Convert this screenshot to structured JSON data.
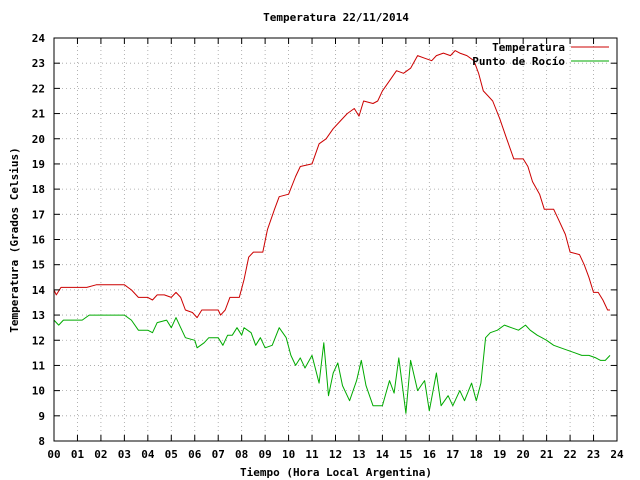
{
  "chart_data": {
    "type": "line",
    "title": "Temperatura 22/11/2014",
    "xlabel": "Tiempo (Hora Local Argentina)",
    "ylabel": "Temperatura (Grados Celsius)",
    "xlim": [
      0,
      24
    ],
    "ylim": [
      8,
      24
    ],
    "x_ticks": [
      "00",
      "01",
      "02",
      "03",
      "04",
      "05",
      "06",
      "07",
      "08",
      "09",
      "10",
      "11",
      "12",
      "13",
      "14",
      "15",
      "16",
      "17",
      "18",
      "19",
      "20",
      "21",
      "22",
      "23",
      "24"
    ],
    "y_ticks": [
      "8",
      "9",
      "10",
      "11",
      "12",
      "13",
      "14",
      "15",
      "16",
      "17",
      "18",
      "19",
      "20",
      "21",
      "22",
      "23",
      "24"
    ],
    "grid": true,
    "legend": "top-right",
    "series": [
      {
        "name": "Temperatura",
        "color": "#cc0000",
        "points": [
          [
            0.0,
            14.0
          ],
          [
            0.1,
            13.8
          ],
          [
            0.3,
            14.1
          ],
          [
            0.6,
            14.1
          ],
          [
            1.0,
            14.1
          ],
          [
            1.4,
            14.1
          ],
          [
            1.8,
            14.2
          ],
          [
            2.2,
            14.2
          ],
          [
            2.6,
            14.2
          ],
          [
            3.0,
            14.2
          ],
          [
            3.3,
            14.0
          ],
          [
            3.6,
            13.7
          ],
          [
            4.0,
            13.7
          ],
          [
            4.2,
            13.6
          ],
          [
            4.4,
            13.8
          ],
          [
            4.7,
            13.8
          ],
          [
            5.0,
            13.7
          ],
          [
            5.2,
            13.9
          ],
          [
            5.4,
            13.7
          ],
          [
            5.6,
            13.2
          ],
          [
            5.9,
            13.1
          ],
          [
            6.1,
            12.9
          ],
          [
            6.3,
            13.2
          ],
          [
            6.6,
            13.2
          ],
          [
            7.0,
            13.2
          ],
          [
            7.1,
            13.0
          ],
          [
            7.3,
            13.2
          ],
          [
            7.5,
            13.7
          ],
          [
            7.9,
            13.7
          ],
          [
            8.1,
            14.4
          ],
          [
            8.3,
            15.3
          ],
          [
            8.5,
            15.5
          ],
          [
            8.9,
            15.5
          ],
          [
            9.1,
            16.4
          ],
          [
            9.4,
            17.2
          ],
          [
            9.6,
            17.7
          ],
          [
            10.0,
            17.8
          ],
          [
            10.3,
            18.5
          ],
          [
            10.5,
            18.9
          ],
          [
            11.0,
            19.0
          ],
          [
            11.3,
            19.8
          ],
          [
            11.6,
            20.0
          ],
          [
            11.9,
            20.4
          ],
          [
            12.2,
            20.7
          ],
          [
            12.5,
            21.0
          ],
          [
            12.8,
            21.2
          ],
          [
            13.0,
            20.9
          ],
          [
            13.2,
            21.5
          ],
          [
            13.6,
            21.4
          ],
          [
            13.8,
            21.5
          ],
          [
            14.0,
            21.9
          ],
          [
            14.3,
            22.3
          ],
          [
            14.6,
            22.7
          ],
          [
            14.9,
            22.6
          ],
          [
            15.2,
            22.8
          ],
          [
            15.5,
            23.3
          ],
          [
            15.8,
            23.2
          ],
          [
            16.1,
            23.1
          ],
          [
            16.3,
            23.3
          ],
          [
            16.6,
            23.4
          ],
          [
            16.9,
            23.3
          ],
          [
            17.1,
            23.5
          ],
          [
            17.3,
            23.4
          ],
          [
            17.6,
            23.3
          ],
          [
            17.9,
            23.1
          ],
          [
            18.1,
            22.6
          ],
          [
            18.3,
            21.9
          ],
          [
            18.5,
            21.7
          ],
          [
            18.7,
            21.5
          ],
          [
            19.0,
            20.8
          ],
          [
            19.3,
            20.0
          ],
          [
            19.6,
            19.2
          ],
          [
            20.0,
            19.2
          ],
          [
            20.2,
            18.9
          ],
          [
            20.4,
            18.3
          ],
          [
            20.7,
            17.8
          ],
          [
            20.9,
            17.2
          ],
          [
            21.3,
            17.2
          ],
          [
            21.5,
            16.8
          ],
          [
            21.8,
            16.2
          ],
          [
            22.0,
            15.5
          ],
          [
            22.4,
            15.4
          ],
          [
            22.6,
            15.0
          ],
          [
            22.8,
            14.5
          ],
          [
            23.0,
            13.9
          ],
          [
            23.2,
            13.9
          ],
          [
            23.4,
            13.6
          ],
          [
            23.6,
            13.2
          ],
          [
            23.7,
            13.2
          ]
        ]
      },
      {
        "name": "Punto de Rocío",
        "color": "#00aa00",
        "points": [
          [
            0.0,
            12.8
          ],
          [
            0.2,
            12.6
          ],
          [
            0.4,
            12.8
          ],
          [
            0.8,
            12.8
          ],
          [
            1.2,
            12.8
          ],
          [
            1.5,
            13.0
          ],
          [
            2.0,
            13.0
          ],
          [
            2.5,
            13.0
          ],
          [
            3.0,
            13.0
          ],
          [
            3.3,
            12.8
          ],
          [
            3.6,
            12.4
          ],
          [
            4.0,
            12.4
          ],
          [
            4.2,
            12.3
          ],
          [
            4.4,
            12.7
          ],
          [
            4.8,
            12.8
          ],
          [
            5.0,
            12.5
          ],
          [
            5.2,
            12.9
          ],
          [
            5.4,
            12.5
          ],
          [
            5.6,
            12.1
          ],
          [
            6.0,
            12.0
          ],
          [
            6.1,
            11.7
          ],
          [
            6.4,
            11.9
          ],
          [
            6.6,
            12.1
          ],
          [
            7.0,
            12.1
          ],
          [
            7.2,
            11.8
          ],
          [
            7.4,
            12.2
          ],
          [
            7.6,
            12.2
          ],
          [
            7.8,
            12.5
          ],
          [
            8.0,
            12.2
          ],
          [
            8.1,
            12.5
          ],
          [
            8.4,
            12.3
          ],
          [
            8.6,
            11.8
          ],
          [
            8.8,
            12.1
          ],
          [
            9.0,
            11.7
          ],
          [
            9.3,
            11.8
          ],
          [
            9.6,
            12.5
          ],
          [
            9.9,
            12.1
          ],
          [
            10.1,
            11.4
          ],
          [
            10.3,
            11.0
          ],
          [
            10.5,
            11.3
          ],
          [
            10.7,
            10.9
          ],
          [
            11.0,
            11.4
          ],
          [
            11.3,
            10.3
          ],
          [
            11.5,
            11.9
          ],
          [
            11.7,
            9.8
          ],
          [
            11.9,
            10.7
          ],
          [
            12.1,
            11.1
          ],
          [
            12.3,
            10.2
          ],
          [
            12.6,
            9.6
          ],
          [
            12.9,
            10.4
          ],
          [
            13.1,
            11.2
          ],
          [
            13.3,
            10.2
          ],
          [
            13.6,
            9.4
          ],
          [
            14.0,
            9.4
          ],
          [
            14.3,
            10.4
          ],
          [
            14.5,
            9.9
          ],
          [
            14.7,
            11.3
          ],
          [
            15.0,
            9.1
          ],
          [
            15.2,
            11.2
          ],
          [
            15.5,
            10.0
          ],
          [
            15.8,
            10.4
          ],
          [
            16.0,
            9.2
          ],
          [
            16.3,
            10.7
          ],
          [
            16.5,
            9.4
          ],
          [
            16.8,
            9.8
          ],
          [
            17.0,
            9.4
          ],
          [
            17.3,
            10.0
          ],
          [
            17.5,
            9.6
          ],
          [
            17.8,
            10.3
          ],
          [
            18.0,
            9.6
          ],
          [
            18.2,
            10.3
          ],
          [
            18.4,
            12.1
          ],
          [
            18.6,
            12.3
          ],
          [
            18.9,
            12.4
          ],
          [
            19.2,
            12.6
          ],
          [
            19.5,
            12.5
          ],
          [
            19.8,
            12.4
          ],
          [
            20.1,
            12.6
          ],
          [
            20.3,
            12.4
          ],
          [
            20.6,
            12.2
          ],
          [
            20.8,
            12.1
          ],
          [
            21.0,
            12.0
          ],
          [
            21.3,
            11.8
          ],
          [
            21.6,
            11.7
          ],
          [
            21.9,
            11.6
          ],
          [
            22.2,
            11.5
          ],
          [
            22.5,
            11.4
          ],
          [
            22.8,
            11.4
          ],
          [
            23.1,
            11.3
          ],
          [
            23.3,
            11.2
          ],
          [
            23.5,
            11.2
          ],
          [
            23.7,
            11.4
          ]
        ]
      }
    ]
  }
}
